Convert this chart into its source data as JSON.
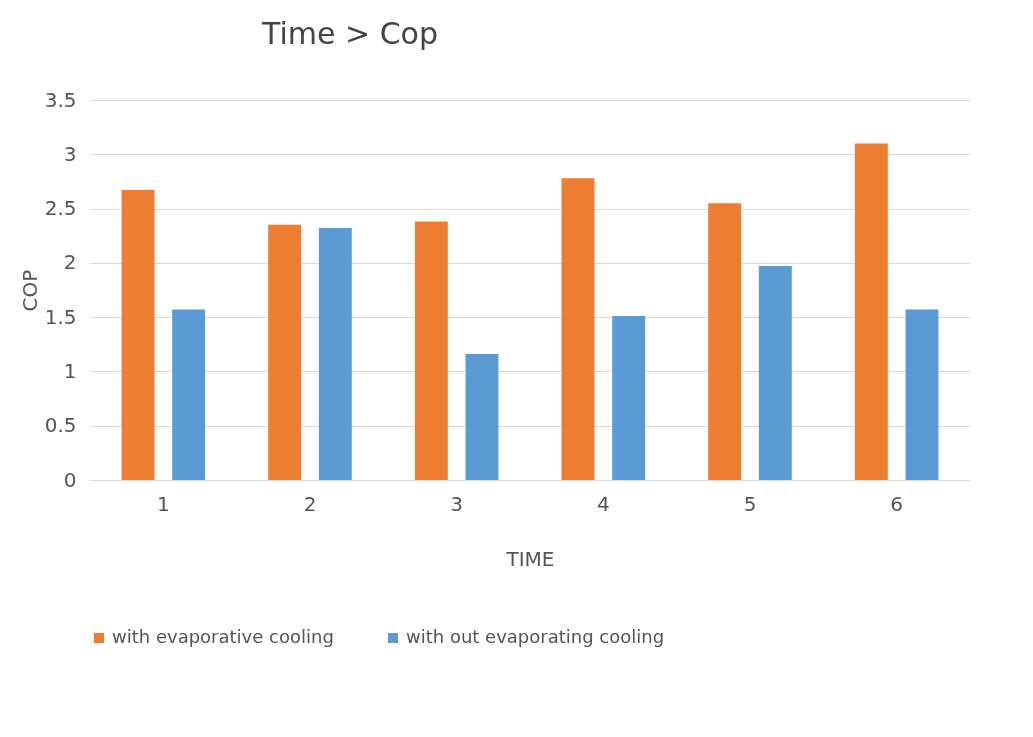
{
  "chart_data": {
    "type": "bar",
    "title": "Time > Cop",
    "xlabel": "TIME",
    "ylabel": "COP",
    "categories": [
      "1",
      "2",
      "3",
      "4",
      "5",
      "6"
    ],
    "series": [
      {
        "name": "with evaporative cooling",
        "color": "#ed7d31",
        "values": [
          2.67,
          2.35,
          2.38,
          2.78,
          2.55,
          3.1
        ]
      },
      {
        "name": "with out evaporating cooling",
        "color": "#5b9bd5",
        "values": [
          1.57,
          2.32,
          1.16,
          1.51,
          1.97,
          1.57
        ]
      }
    ],
    "ylim": [
      0,
      3.5
    ],
    "yticks": [
      0,
      0.5,
      1,
      1.5,
      2,
      2.5,
      3,
      3.5
    ],
    "grid": "y",
    "legend": "bottom"
  }
}
